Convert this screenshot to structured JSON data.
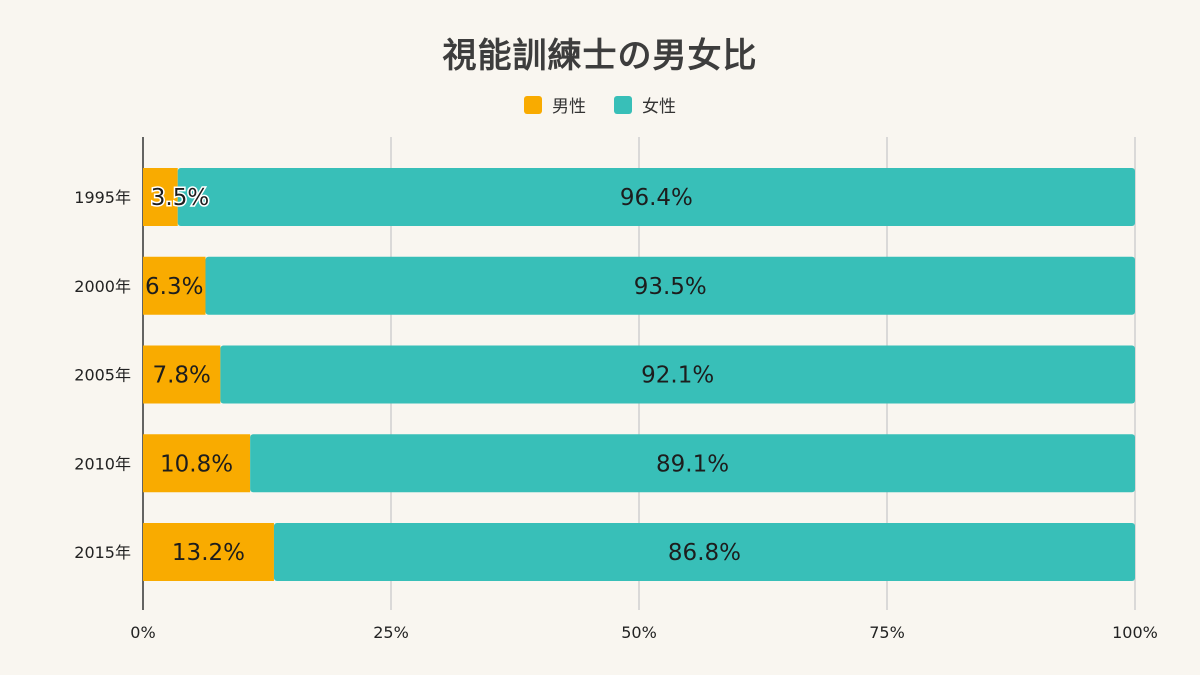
{
  "chart_data": {
    "type": "bar",
    "orientation": "horizontal",
    "stacked": true,
    "title": "視能訓練士の男女比",
    "categories": [
      "1995年",
      "2000年",
      "2005年",
      "2010年",
      "2015年"
    ],
    "series": [
      {
        "name": "男性",
        "color": "#f9ab00",
        "values": [
          3.5,
          6.3,
          7.8,
          10.8,
          13.2
        ],
        "labels": [
          "3.5%",
          "6.3%",
          "7.8%",
          "10.8%",
          "13.2%"
        ]
      },
      {
        "name": "女性",
        "color": "#38bfb8",
        "values": [
          96.4,
          93.5,
          92.1,
          89.1,
          86.8
        ],
        "labels": [
          "96.4%",
          "93.5%",
          "92.1%",
          "89.1%",
          "86.8%"
        ]
      }
    ],
    "xlim": [
      0,
      100
    ],
    "xticks": [
      "0%",
      "25%",
      "50%",
      "75%",
      "100%"
    ],
    "grid": "vertical",
    "legend": "top-center"
  }
}
